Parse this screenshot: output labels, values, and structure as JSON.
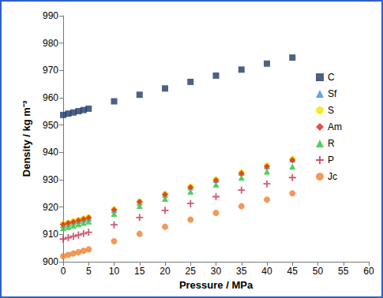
{
  "chart_data": {
    "type": "scatter",
    "x_label": "Pressure / MPa",
    "y_label": "Density / kg m⁻³",
    "xlim": [
      0,
      60
    ],
    "xticks": [
      0,
      5,
      10,
      15,
      20,
      25,
      30,
      35,
      40,
      45,
      50,
      55,
      60
    ],
    "ylim": [
      900,
      990
    ],
    "yticks": [
      900,
      910,
      920,
      930,
      940,
      950,
      960,
      970,
      980,
      990
    ],
    "grid": false,
    "legend": "upper right",
    "x": [
      0,
      1,
      2,
      3,
      4,
      5,
      10,
      15,
      20,
      25,
      30,
      35,
      40,
      45
    ],
    "series": [
      {
        "name": "C",
        "color": "#1f3a66",
        "marker": "square",
        "values": [
          953.7,
          954.2,
          954.6,
          955.1,
          955.5,
          956.0,
          958.7,
          961.1,
          963.4,
          965.8,
          968.1,
          970.3,
          972.5,
          974.7
        ]
      },
      {
        "name": "Sf",
        "color": "#3d8ee0",
        "marker": "triangle",
        "values": [
          913.5,
          914.0,
          914.5,
          915.0,
          915.5,
          916.0,
          919.0,
          921.8,
          924.6,
          927.3,
          930.0,
          932.6,
          935.0,
          937.4
        ]
      },
      {
        "name": "S",
        "color": "#f2e600",
        "marker": "circle",
        "values": [
          913.8,
          914.3,
          914.8,
          915.3,
          915.8,
          916.3,
          919.2,
          922.0,
          924.8,
          927.5,
          930.1,
          932.7,
          935.2,
          937.6
        ]
      },
      {
        "name": "Am",
        "color": "#e3221c",
        "marker": "diamond",
        "values": [
          913.6,
          914.1,
          914.6,
          915.1,
          915.6,
          916.1,
          919.0,
          921.9,
          924.6,
          927.2,
          929.8,
          932.3,
          934.8,
          937.2
        ]
      },
      {
        "name": "R",
        "color": "#2fbf3a",
        "marker": "triangle",
        "values": [
          912.3,
          912.8,
          913.3,
          913.8,
          914.3,
          914.8,
          917.6,
          920.4,
          923.1,
          925.7,
          928.3,
          930.8,
          933.0,
          934.8
        ]
      },
      {
        "name": "P",
        "color": "#c4304e",
        "marker": "plus",
        "values": [
          908.3,
          908.8,
          909.3,
          909.8,
          910.3,
          910.8,
          913.5,
          916.2,
          918.8,
          921.3,
          923.8,
          926.2,
          928.5,
          930.8
        ]
      },
      {
        "name": "Jc",
        "color": "#f07f2e",
        "marker": "circle",
        "values": [
          902.0,
          902.5,
          903.0,
          903.5,
          904.0,
          904.5,
          907.5,
          910.2,
          912.8,
          915.4,
          917.9,
          920.3,
          922.7,
          925.0
        ]
      }
    ]
  }
}
